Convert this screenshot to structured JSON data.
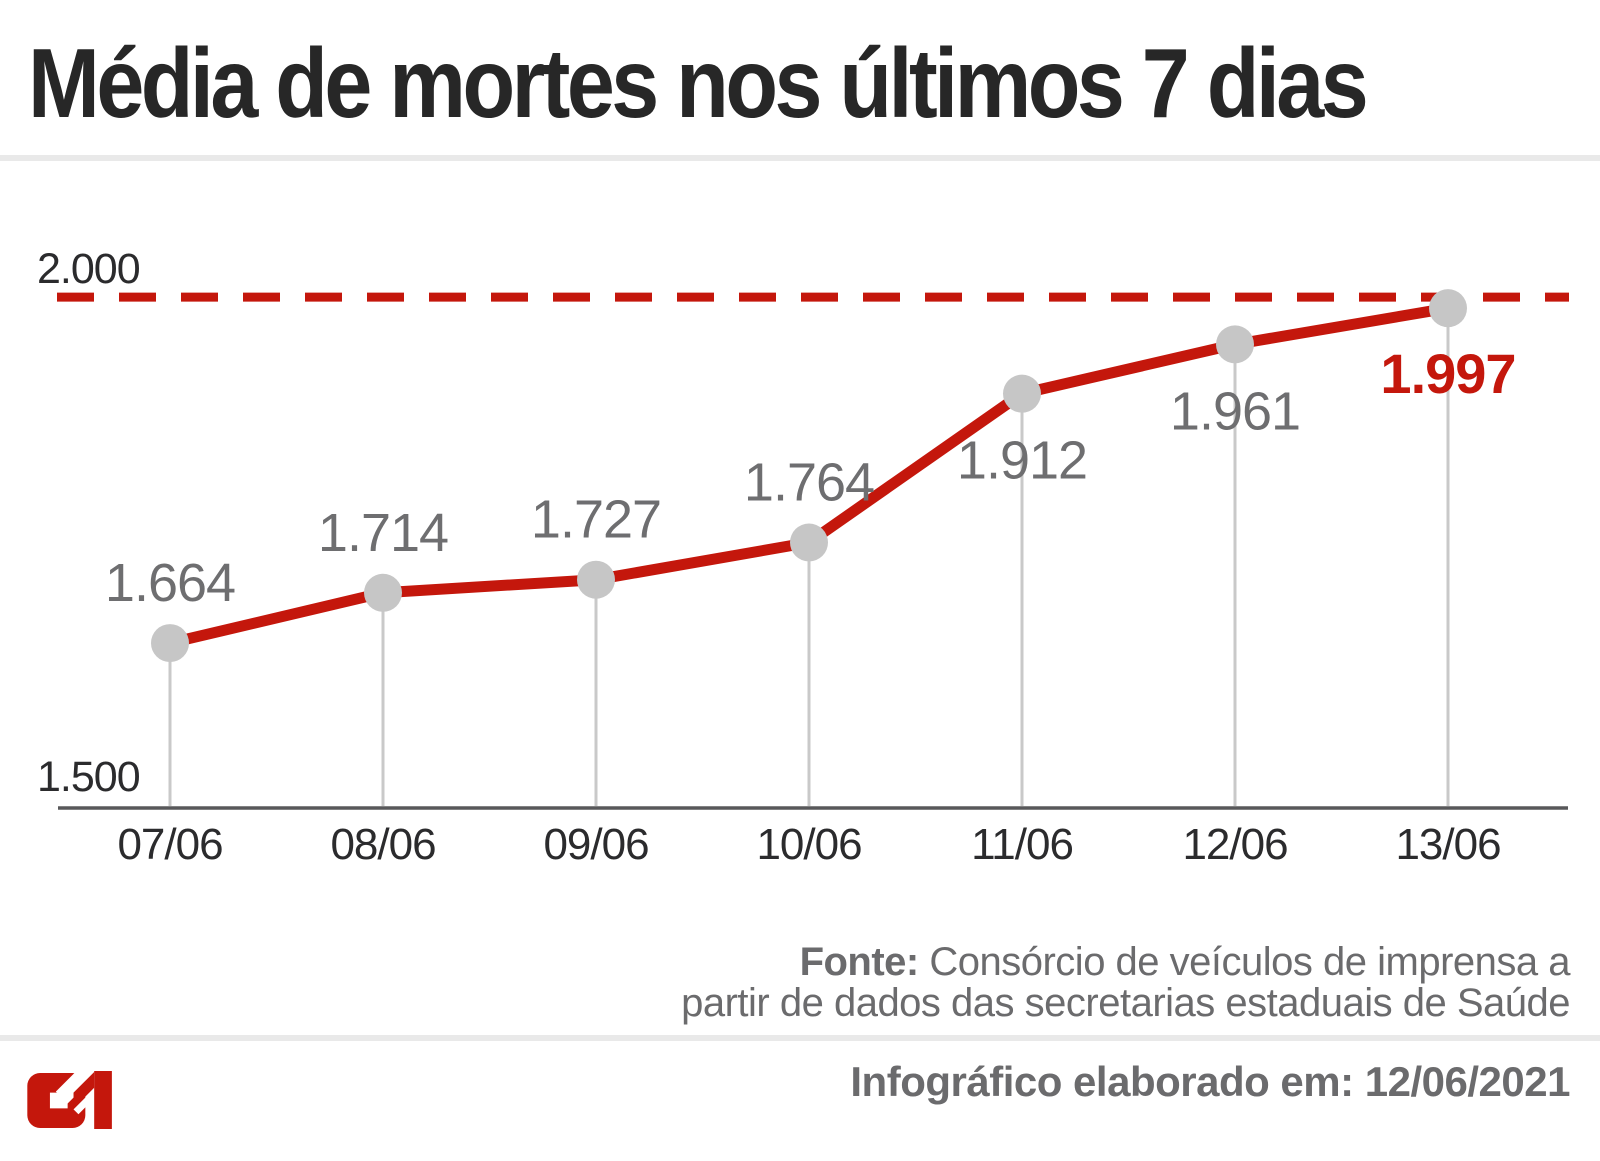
{
  "header": {
    "title": "Média de mortes nos últimos 7 dias"
  },
  "chart_data": {
    "type": "line",
    "title": "Média de mortes nos últimos 7 dias",
    "categories": [
      "07/06",
      "08/06",
      "09/06",
      "10/06",
      "11/06",
      "12/06",
      "13/06"
    ],
    "values": [
      1664,
      1714,
      1727,
      1764,
      1912,
      1961,
      1997
    ],
    "point_labels": [
      "1.664",
      "1.714",
      "1.727",
      "1.764",
      "1.912",
      "1.961",
      "1.997"
    ],
    "label_side": [
      "above",
      "above",
      "above",
      "above",
      "below",
      "below",
      "below"
    ],
    "highlight_index": 6,
    "xlabel": "",
    "ylabel": "",
    "ylim": [
      1500,
      2015
    ],
    "y_axis": {
      "top_label": "2.000",
      "top_value": 2000,
      "bottom_label": "1.500",
      "bottom_value": 1500
    },
    "reference_line": {
      "value": 2000,
      "style": "dashed"
    },
    "grid": "vertical-droplines",
    "legend": "none",
    "colors": {
      "line": "#c4170c",
      "reference": "#c4170c",
      "point": "#c6c6c6",
      "point_label": "#6e6e70",
      "highlight_label": "#c4170c",
      "axis": "#58585a",
      "dropline": "#c9c9c9",
      "tick_text": "#2b2b2d"
    }
  },
  "footer": {
    "source_prefix": "Fonte:",
    "source_line1": " Consórcio de veículos de imprensa a",
    "source_line2": "partir de dados das secretarias estaduais de Saúde",
    "elaborated": "Infográfico elaborado em: 12/06/2021"
  },
  "brand": {
    "logo": "g1-logo",
    "logo_color": "#c4170c"
  }
}
